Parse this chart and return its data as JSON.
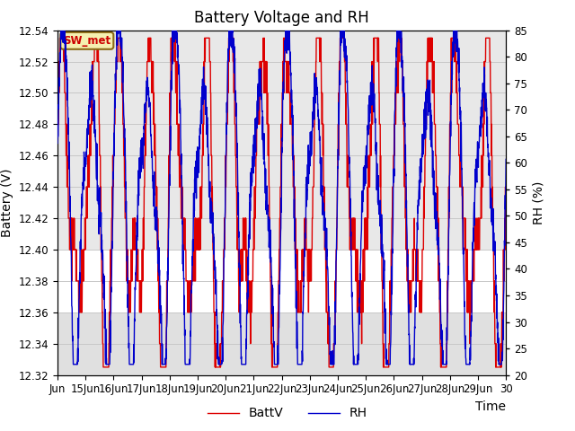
{
  "title": "Battery Voltage and RH",
  "xlabel": "Time",
  "ylabel_left": "Battery (V)",
  "ylabel_right": "RH (%)",
  "legend_label_red": "BattV",
  "legend_label_blue": "RH",
  "station_label": "SW_met",
  "xlim_start": 14.0,
  "xlim_end": 30.0,
  "ylim_left": [
    12.32,
    12.54
  ],
  "ylim_right": [
    20,
    85
  ],
  "yticks_left": [
    12.32,
    12.34,
    12.36,
    12.38,
    12.4,
    12.42,
    12.44,
    12.46,
    12.48,
    12.5,
    12.52,
    12.54
  ],
  "yticks_right": [
    20,
    25,
    30,
    35,
    40,
    45,
    50,
    55,
    60,
    65,
    70,
    75,
    80,
    85
  ],
  "xtick_labels": [
    "Jun",
    "15Jun",
    "16Jun",
    "17Jun",
    "18Jun",
    "19Jun",
    "20Jun",
    "21Jun",
    "22Jun",
    "23Jun",
    "24Jun",
    "25Jun",
    "26Jun",
    "27Jun",
    "28Jun",
    "29Jun",
    "30"
  ],
  "xtick_positions": [
    14,
    15,
    16,
    17,
    18,
    19,
    20,
    21,
    22,
    23,
    24,
    25,
    26,
    27,
    28,
    29,
    30
  ],
  "background_color": "#ffffff",
  "grid_color": "#c8c8c8",
  "line_color_red": "#dd0000",
  "line_color_blue": "#0000cc",
  "shading_upper": "#e8e8e8",
  "shading_lower": "#e0e0e0",
  "title_fontsize": 12,
  "axis_label_fontsize": 10,
  "tick_fontsize": 8.5,
  "legend_fontsize": 10
}
